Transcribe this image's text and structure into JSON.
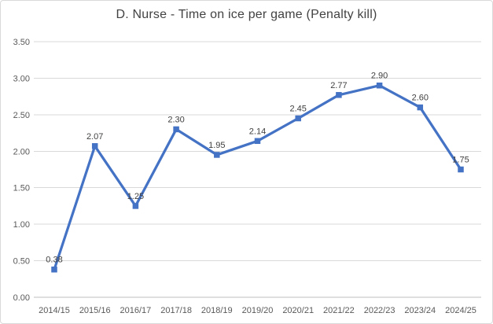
{
  "title": "D. Nurse - Time on ice per game (Penalty kill)",
  "chart_data": {
    "type": "line",
    "title": "D. Nurse - Time on ice per game (Penalty kill)",
    "categories": [
      "2014/15",
      "2015/16",
      "2016/17",
      "2017/18",
      "2018/19",
      "2019/20",
      "2020/21",
      "2021/22",
      "2022/23",
      "2023/24",
      "2024/25"
    ],
    "values": [
      0.38,
      2.07,
      1.25,
      2.3,
      1.95,
      2.14,
      2.45,
      2.77,
      2.9,
      2.6,
      1.75
    ],
    "data_labels": [
      "0.38",
      "2.07",
      "1.25",
      "2.30",
      "1.95",
      "2.14",
      "2.45",
      "2.77",
      "2.90",
      "2.60",
      "1.75"
    ],
    "xlabel": "",
    "ylabel": "",
    "ylim": [
      0,
      3.5
    ],
    "y_ticks": [
      0.0,
      0.5,
      1.0,
      1.5,
      2.0,
      2.5,
      3.0,
      3.5
    ],
    "y_tick_labels": [
      "0.00",
      "0.50",
      "1.00",
      "1.50",
      "2.00",
      "2.50",
      "3.00",
      "3.50"
    ],
    "grid": true,
    "legend": false,
    "marker": "square"
  },
  "colors": {
    "series": "#4472C4",
    "gridline": "#d9d9d9",
    "axis_line": "#bfbfbf",
    "tick_text": "#595959",
    "data_label_text": "#404040",
    "title_text": "#424242",
    "background": "#ffffff",
    "frame_border": "#d9d9d9"
  }
}
